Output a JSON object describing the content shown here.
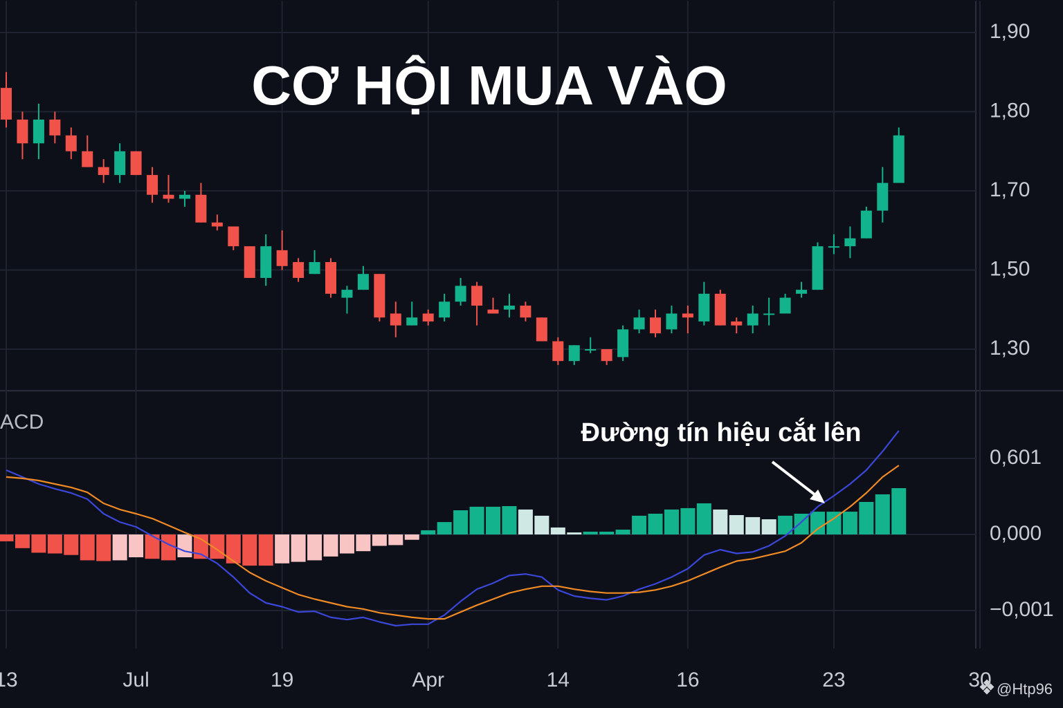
{
  "chart_data": [
    {
      "type": "candlestick",
      "title": "CƠ HỘI MUA VÀO",
      "categories": [
        "13",
        null,
        null,
        null,
        null,
        null,
        null,
        null,
        "Jul",
        null,
        null,
        null,
        null,
        null,
        null,
        null,
        null,
        "19",
        null,
        null,
        null,
        null,
        null,
        null,
        null,
        null,
        "Apr",
        null,
        null,
        null,
        null,
        null,
        null,
        null,
        "14",
        null,
        null,
        null,
        null,
        null,
        null,
        null,
        "16",
        null,
        null,
        null,
        null,
        null,
        null,
        null,
        null,
        "23",
        null,
        null,
        null,
        null,
        null,
        null,
        null,
        null,
        "30"
      ],
      "open": [
        1.83,
        1.79,
        1.76,
        1.79,
        1.77,
        1.75,
        1.73,
        1.72,
        1.75,
        1.72,
        1.69,
        1.68,
        1.69,
        1.62,
        1.61,
        1.56,
        1.48,
        1.55,
        1.52,
        1.49,
        1.52,
        1.43,
        1.45,
        1.49,
        1.39,
        1.36,
        1.39,
        1.38,
        1.42,
        1.46,
        1.4,
        1.4,
        1.41,
        1.38,
        1.32,
        1.27,
        1.3,
        1.3,
        1.28,
        1.35,
        1.38,
        1.35,
        1.39,
        1.37,
        1.44,
        1.37,
        1.36,
        1.39,
        1.39,
        1.44,
        1.45,
        1.56,
        1.56,
        1.58,
        1.65,
        1.71,
        null,
        null,
        null,
        null,
        null
      ],
      "high": [
        1.85,
        1.8,
        1.81,
        1.8,
        1.78,
        1.77,
        1.74,
        1.76,
        1.75,
        1.73,
        1.72,
        1.7,
        1.71,
        1.64,
        1.61,
        1.56,
        1.59,
        1.6,
        1.53,
        1.55,
        1.53,
        1.46,
        1.51,
        1.49,
        1.42,
        1.42,
        1.4,
        1.44,
        1.48,
        1.47,
        1.43,
        1.44,
        1.42,
        1.38,
        1.33,
        1.31,
        1.33,
        1.3,
        1.36,
        1.4,
        1.4,
        1.41,
        1.41,
        1.47,
        1.45,
        1.38,
        1.41,
        1.43,
        1.44,
        1.47,
        1.57,
        1.59,
        1.61,
        1.66,
        1.73,
        1.78,
        null,
        null,
        null,
        null,
        null
      ],
      "low": [
        1.78,
        1.74,
        1.74,
        1.76,
        1.74,
        1.73,
        1.71,
        1.71,
        1.72,
        1.67,
        1.67,
        1.66,
        1.62,
        1.6,
        1.55,
        1.48,
        1.46,
        1.5,
        1.47,
        1.49,
        1.43,
        1.39,
        1.45,
        1.37,
        1.33,
        1.36,
        1.36,
        1.37,
        1.41,
        1.36,
        1.39,
        1.38,
        1.37,
        1.32,
        1.26,
        1.26,
        1.29,
        1.26,
        1.27,
        1.34,
        1.33,
        1.34,
        1.34,
        1.36,
        1.36,
        1.34,
        1.34,
        1.36,
        1.39,
        1.43,
        1.45,
        1.54,
        1.53,
        1.58,
        1.62,
        1.71,
        null,
        null,
        null,
        null,
        null
      ],
      "close": [
        1.79,
        1.76,
        1.79,
        1.77,
        1.75,
        1.73,
        1.72,
        1.75,
        1.72,
        1.69,
        1.68,
        1.69,
        1.62,
        1.61,
        1.56,
        1.48,
        1.56,
        1.51,
        1.48,
        1.52,
        1.44,
        1.45,
        1.49,
        1.38,
        1.36,
        1.38,
        1.37,
        1.42,
        1.46,
        1.41,
        1.39,
        1.41,
        1.38,
        1.32,
        1.27,
        1.31,
        1.3,
        1.27,
        1.35,
        1.38,
        1.34,
        1.39,
        1.38,
        1.44,
        1.36,
        1.36,
        1.39,
        1.39,
        1.43,
        1.45,
        1.56,
        1.56,
        1.58,
        1.65,
        1.71,
        1.77,
        null,
        null,
        null,
        null,
        null
      ],
      "up_color": "#13b38e",
      "down_color": "#f1524a",
      "ylim": [
        1.195,
        1.94
      ],
      "yticks": [
        {
          "value": 1.9,
          "label": "1,90"
        },
        {
          "value": 1.8,
          "label": "1,80"
        },
        {
          "value": 1.7,
          "label": "1,70"
        },
        {
          "value": 1.5,
          "label": "1,50"
        },
        {
          "value": 1.3,
          "label": "1,30"
        }
      ],
      "grid": true
    },
    {
      "type": "macd",
      "label": "ACD",
      "histogram": {
        "values": [
          -9e-05,
          -0.00018,
          -0.00024,
          -0.00025,
          -0.00027,
          -0.00034,
          -0.00035,
          -0.00034,
          -0.0003,
          -0.00032,
          -0.00034,
          -0.0003,
          -0.00032,
          -0.00032,
          -0.00038,
          -0.00041,
          -0.00041,
          -0.00038,
          -0.00036,
          -0.00034,
          -0.00029,
          -0.00025,
          -0.00022,
          -0.00015,
          -0.00014,
          -7e-05,
          0.033,
          0.098,
          0.191,
          0.219,
          0.219,
          0.224,
          0.197,
          0.148,
          0.055,
          0.016,
          0.022,
          0.022,
          0.038,
          0.148,
          0.164,
          0.197,
          0.208,
          0.246,
          0.197,
          0.153,
          0.137,
          0.12,
          0.148,
          0.164,
          0.18,
          0.18,
          0.18,
          0.257,
          0.317,
          0.366
        ],
        "colors": {
          "up_rising": "#13b38e",
          "up_falling": "#cfe8e4",
          "down_falling": "#f1524a",
          "down_rising": "#f8c4c4"
        }
      },
      "series": [
        {
          "color": "#3a47d8",
          "values": [
            0.508,
            0.454,
            0.399,
            0.361,
            0.328,
            0.279,
            0.164,
            0.098,
            0.06,
            -2e-05,
            -0.00013,
            -0.00022,
            -0.00026,
            -0.00038,
            -0.00056,
            -0.00077,
            -0.0009,
            -0.00095,
            -0.00102,
            -0.00101,
            -0.00109,
            -0.00112,
            -0.00109,
            -0.00115,
            -0.0012,
            -0.00118,
            -0.00118,
            -0.00106,
            -0.00088,
            -0.00072,
            -0.00064,
            -0.00054,
            -0.00052,
            -0.00056,
            -0.00073,
            -0.00081,
            -0.00084,
            -0.00086,
            -0.00081,
            -0.00072,
            -0.00065,
            -0.00056,
            -0.00045,
            -0.00027,
            -0.0002,
            -0.00025,
            -0.00023,
            -0.00015,
            -2e-05,
            0.098,
            0.219,
            0.306,
            0.399,
            0.508,
            0.656,
            0.82
          ]
        },
        {
          "color": "#f08a24",
          "values": [
            0.454,
            0.443,
            0.426,
            0.399,
            0.372,
            0.333,
            0.246,
            0.197,
            0.164,
            0.126,
            0.071,
            0.016,
            -6e-05,
            -0.0002,
            -0.00035,
            -0.0005,
            -0.00061,
            -0.0007,
            -0.00079,
            -0.00085,
            -0.0009,
            -0.00095,
            -0.00098,
            -0.00103,
            -0.00106,
            -0.00109,
            -0.00111,
            -0.00111,
            -0.00102,
            -0.00093,
            -0.00085,
            -0.00077,
            -0.00072,
            -0.00068,
            -0.00068,
            -0.00072,
            -0.00075,
            -0.00077,
            -0.00077,
            -0.00076,
            -0.00073,
            -0.00068,
            -0.00061,
            -0.00052,
            -0.00043,
            -0.00035,
            -0.00032,
            -0.00027,
            -0.00022,
            -0.00011,
            0.044,
            0.126,
            0.219,
            0.328,
            0.454,
            0.546
          ]
        }
      ],
      "ylim": [
        -0.0015,
        1.136
      ],
      "yticks": [
        {
          "value": 0.601,
          "label": "0,601"
        },
        {
          "value": 0,
          "label": "0,000"
        },
        {
          "value": -0.001,
          "label": "−0,001"
        }
      ],
      "grid": true,
      "annotation": "Đường tín hiệu cắt lên"
    }
  ],
  "watermark": "@Htp96"
}
